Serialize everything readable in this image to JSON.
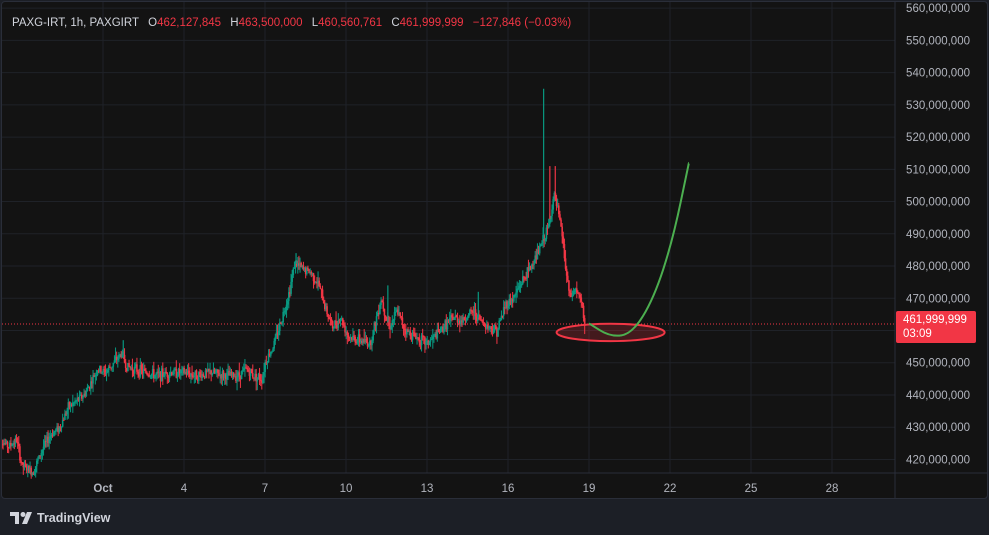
{
  "legend": {
    "symbol": "PAXG-IRT, 1h, PAXGIRT",
    "open_label": "O",
    "open": "462,127,845",
    "high_label": "H",
    "high": "463,500,000",
    "low_label": "L",
    "low": "460,560,761",
    "close_label": "C",
    "close": "461,999,999",
    "change": "−127,846 (−0.03%)"
  },
  "price_tag": {
    "price": "461,999,999",
    "countdown": "03:09"
  },
  "branding": {
    "name": "TradingView",
    "icon": "tradingview-logo-icon"
  },
  "colors": {
    "background": "#131313",
    "grid": "#1f2228",
    "axis_text": "#b2b5be",
    "up": "#089981",
    "down": "#f23645",
    "annotation": "#4caf50",
    "ellipse_stroke": "#f23645",
    "ellipse_fill": "#f23645"
  },
  "chart_data": {
    "type": "candlestick",
    "title": "PAXG-IRT, 1h, PAXGIRT",
    "x_axis": {
      "ticks": [
        "Oct",
        "4",
        "7",
        "10",
        "13",
        "16",
        "19",
        "22",
        "25",
        "28"
      ],
      "tick_day": [
        1,
        4,
        7,
        10,
        13,
        16,
        19,
        22,
        25,
        28
      ],
      "range_day": [
        27.66,
        33.72
      ]
    },
    "y_axis": {
      "ticks": [
        420000000,
        430000000,
        440000000,
        450000000,
        460000000,
        470000000,
        480000000,
        490000000,
        500000000,
        510000000,
        520000000,
        530000000,
        540000000,
        550000000,
        560000000
      ],
      "range": [
        415800000,
        561900000
      ],
      "position": "right"
    },
    "last_price": 461999999,
    "price_path": [
      [
        -2.91,
        427000000
      ],
      [
        -2.5,
        424000000
      ],
      [
        -2.2,
        426000000
      ],
      [
        -2.0,
        418000000
      ],
      [
        -1.6,
        416000000
      ],
      [
        -1.2,
        424000000
      ],
      [
        -0.9,
        428000000
      ],
      [
        -0.6,
        430000000
      ],
      [
        -0.3,
        436000000
      ],
      [
        0.0,
        438000000
      ],
      [
        0.3,
        440000000
      ],
      [
        0.5,
        443000000
      ],
      [
        0.8,
        448000000
      ],
      [
        1.1,
        447000000
      ],
      [
        1.4,
        450000000
      ],
      [
        1.7,
        453000000
      ],
      [
        1.85,
        449000000
      ],
      [
        2.2,
        448000000
      ],
      [
        2.6,
        447000000
      ],
      [
        3.0,
        446000000
      ],
      [
        3.5,
        447000000
      ],
      [
        4.0,
        447000000
      ],
      [
        4.5,
        446000000
      ],
      [
        5.0,
        447000000
      ],
      [
        5.5,
        446000000
      ],
      [
        6.0,
        446000000
      ],
      [
        6.3,
        448000000
      ],
      [
        6.6,
        446000000
      ],
      [
        6.9,
        445000000
      ],
      [
        7.0,
        450000000
      ],
      [
        7.3,
        455000000
      ],
      [
        7.6,
        463000000
      ],
      [
        7.9,
        472000000
      ],
      [
        8.1,
        481000000
      ],
      [
        8.4,
        479000000
      ],
      [
        8.7,
        478000000
      ],
      [
        9.0,
        474000000
      ],
      [
        9.2,
        468000000
      ],
      [
        9.5,
        461000000
      ],
      [
        9.8,
        464000000
      ],
      [
        10.1,
        458000000
      ],
      [
        10.5,
        457000000
      ],
      [
        10.9,
        456000000
      ],
      [
        11.3,
        470000000
      ],
      [
        11.6,
        461000000
      ],
      [
        11.9,
        466000000
      ],
      [
        12.2,
        460000000
      ],
      [
        12.6,
        458000000
      ],
      [
        13.0,
        456000000
      ],
      [
        13.4,
        459000000
      ],
      [
        13.7,
        462000000
      ],
      [
        14.0,
        464000000
      ],
      [
        14.3,
        463000000
      ],
      [
        14.7,
        466000000
      ],
      [
        15.0,
        463000000
      ],
      [
        15.3,
        461000000
      ],
      [
        15.6,
        460000000
      ],
      [
        15.9,
        468000000
      ],
      [
        16.2,
        470000000
      ],
      [
        16.5,
        475000000
      ],
      [
        16.8,
        479000000
      ],
      [
        17.1,
        484000000
      ],
      [
        17.3,
        488000000
      ],
      [
        17.5,
        492000000
      ],
      [
        17.7,
        502000000
      ],
      [
        17.85,
        497000000
      ],
      [
        18.0,
        490000000
      ],
      [
        18.15,
        478000000
      ],
      [
        18.3,
        470000000
      ],
      [
        18.5,
        473000000
      ],
      [
        18.7,
        469000000
      ],
      [
        18.85,
        461999999
      ]
    ],
    "wick_highs": [
      [
        17.32,
        535000000
      ],
      [
        17.55,
        511000000
      ],
      [
        17.75,
        511000000
      ],
      [
        8.15,
        484000000
      ],
      [
        1.75,
        457000000
      ],
      [
        11.55,
        474000000
      ],
      [
        14.9,
        472000000
      ]
    ],
    "annotations": [
      {
        "kind": "ellipse",
        "center_day": 19.8,
        "center_price": 459400000,
        "rx_days": 2.0,
        "ry_price": 2700000
      },
      {
        "kind": "projection-curve",
        "points": [
          [
            19.0,
            462200000
          ],
          [
            19.8,
            458000000
          ],
          [
            20.6,
            459000000
          ],
          [
            21.4,
            470000000
          ],
          [
            22.1,
            488000000
          ],
          [
            22.7,
            512000000
          ]
        ]
      }
    ]
  }
}
